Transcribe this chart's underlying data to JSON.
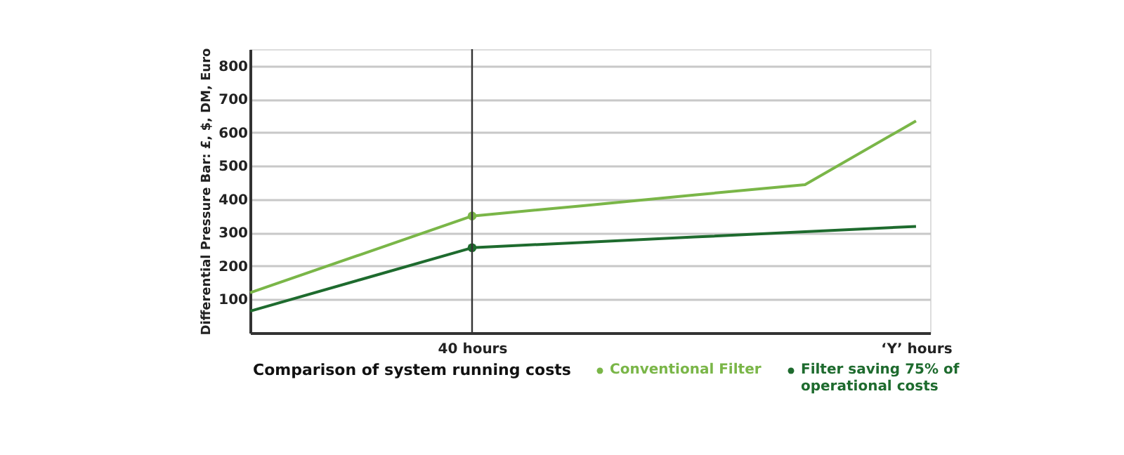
{
  "chart_data": {
    "type": "line",
    "xlabel": "Comparison of system running costs",
    "ylabel": "Differential Pressure Bar: £, $, DM, Euro",
    "categories": [
      null,
      null,
      "40 hours",
      null,
      null,
      null,
      "‘Y’ hours"
    ],
    "ylim": [
      0,
      850
    ],
    "yticks": [
      100,
      200,
      300,
      400,
      500,
      600,
      700,
      800
    ],
    "grid": "y",
    "legend": "bottom",
    "marker": "none",
    "series": [
      {
        "name": "Conventional Filter",
        "color": "#7ab648",
        "values": [
          120,
          235,
          350,
          381,
          413,
          444,
          635
        ]
      },
      {
        "name": "Filter saving 75% of operational costs",
        "color": "#1e6b2e",
        "values": [
          65,
          160,
          255,
          271,
          287,
          303,
          319
        ]
      },
      {
        "type": "scatter",
        "color": "#7ab648",
        "values": [
          null,
          null,
          350,
          null,
          null,
          null,
          null
        ],
        "marker": "circle"
      },
      {
        "type": "scatter",
        "color": "#1e6b2e",
        "values": [
          null,
          null,
          255,
          null,
          null,
          null,
          null
        ],
        "marker": "circle"
      }
    ],
    "ref_lines": [
      {
        "axis": "x",
        "value": "40 hours",
        "color": "#333333",
        "line_style": "solid"
      }
    ]
  }
}
